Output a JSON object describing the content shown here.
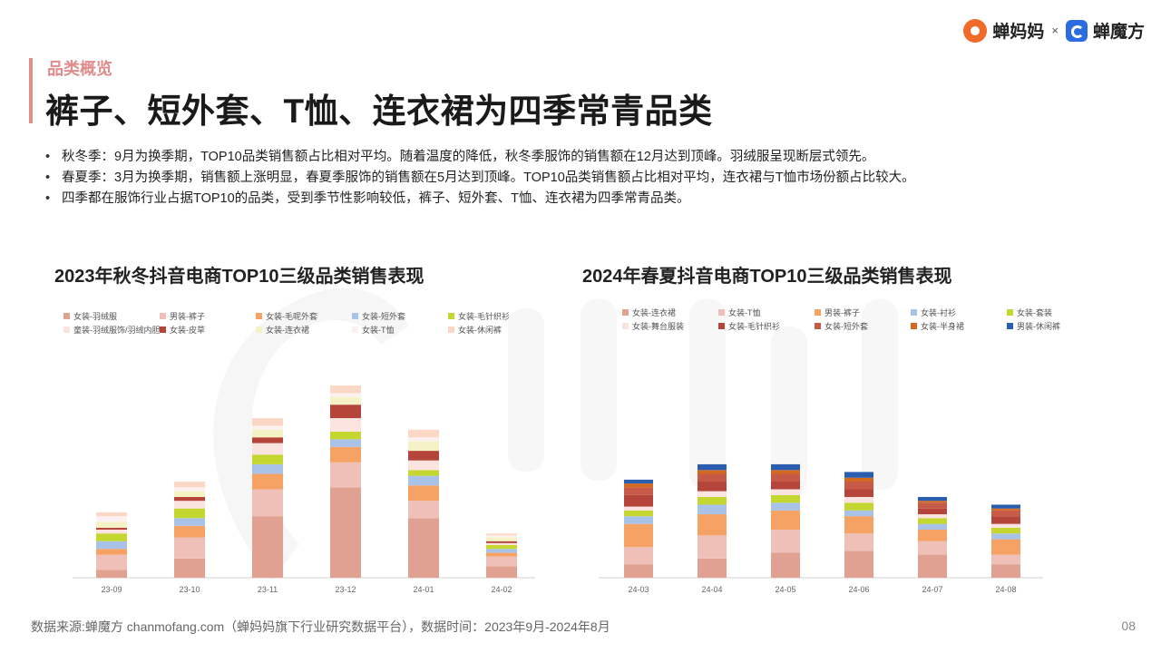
{
  "header": {
    "section_tag": "品类概览",
    "title": "裤子、短外套、T恤、连衣裙为四季常青品类",
    "brand_left": "蝉妈妈",
    "brand_sep": "×",
    "brand_right": "蝉魔方"
  },
  "bullets": [
    "秋冬季：9月为换季期，TOP10品类销售额占比相对平均。随着温度的降低，秋冬季服饰的销售额在12月达到顶峰。羽绒服呈现断层式领先。",
    "春夏季：3月为换季期，销售额上涨明显，春夏季服饰的销售额在5月达到顶峰。TOP10品类销售额占比相对平均，连衣裙与T恤市场份额占比较大。",
    "四季都在服饰行业占据TOP10的品类，受到季节性影响较低，裤子、短外套、T恤、连衣裙为四季常青品类。"
  ],
  "chart_data": [
    {
      "type": "bar",
      "stacked": true,
      "title": "2023年秋冬抖音电商TOP10三级品类销售表现",
      "categories": [
        "23-09",
        "23-10",
        "23-11",
        "23-12",
        "24-01",
        "24-02"
      ],
      "ylim": [
        0,
        100
      ],
      "grid": false,
      "legend_position": "top",
      "series": [
        {
          "name": "女装-羽绒服",
          "color": "#e0a193",
          "values": [
            4,
            10,
            32,
            47,
            31,
            6
          ]
        },
        {
          "name": "男装-裤子",
          "color": "#efc0b8",
          "values": [
            8,
            11,
            14,
            13,
            9,
            5
          ]
        },
        {
          "name": "女装-毛呢外套",
          "color": "#f6a265",
          "values": [
            3,
            6,
            8,
            8,
            8,
            2
          ]
        },
        {
          "name": "女装-短外套",
          "color": "#a9c2e8",
          "values": [
            4,
            4,
            5,
            4,
            5,
            2
          ]
        },
        {
          "name": "女装-毛针织衫",
          "color": "#c4d630",
          "values": [
            4,
            5,
            5,
            4,
            3,
            2
          ]
        },
        {
          "name": "童装-羽绒服饰/羽绒内胆",
          "color": "#fbe3df",
          "values": [
            2,
            4,
            6,
            7,
            5,
            1
          ]
        },
        {
          "name": "女装-皮草",
          "color": "#b5443a",
          "values": [
            1,
            2,
            3,
            7,
            5,
            1
          ]
        },
        {
          "name": "女装-连衣裙",
          "color": "#f5f3c6",
          "values": [
            3,
            3,
            4,
            4,
            5,
            2
          ]
        },
        {
          "name": "女装-T恤",
          "color": "#fbf1f0",
          "values": [
            3,
            2,
            2,
            2,
            2,
            1
          ]
        },
        {
          "name": "女装-休闲裤",
          "color": "#fbd8c5",
          "values": [
            2,
            3,
            4,
            4,
            4,
            1
          ]
        }
      ]
    },
    {
      "type": "bar",
      "stacked": true,
      "title": "2024年春夏抖音电商TOP10三级品类销售表现",
      "categories": [
        "24-03",
        "24-04",
        "24-05",
        "24-06",
        "24-07",
        "24-08"
      ],
      "ylim": [
        0,
        100
      ],
      "grid": false,
      "legend_position": "top",
      "series": [
        {
          "name": "女装-连衣裙",
          "color": "#e0a193",
          "values": [
            7,
            10,
            13,
            14,
            12,
            7
          ]
        },
        {
          "name": "女装-T恤",
          "color": "#efc0b8",
          "values": [
            9,
            12,
            12,
            9,
            7,
            5
          ]
        },
        {
          "name": "男装-裤子",
          "color": "#f6a265",
          "values": [
            12,
            11,
            10,
            9,
            6,
            8
          ]
        },
        {
          "name": "女装-衬衫",
          "color": "#a9c2e8",
          "values": [
            4,
            5,
            4,
            3,
            3,
            3
          ]
        },
        {
          "name": "女装-套装",
          "color": "#c4d630",
          "values": [
            3,
            4,
            4,
            4,
            3,
            3
          ]
        },
        {
          "name": "女装-舞台服装",
          "color": "#fbe3df",
          "values": [
            2,
            3,
            3,
            3,
            2,
            2
          ]
        },
        {
          "name": "女装-毛针织衫",
          "color": "#b5443a",
          "values": [
            6,
            5,
            4,
            4,
            3,
            4
          ]
        },
        {
          "name": "女装-短外套",
          "color": "#c65a46",
          "values": [
            4,
            4,
            4,
            4,
            3,
            3
          ]
        },
        {
          "name": "女装-半身裙",
          "color": "#d2691e",
          "values": [
            2,
            2,
            2,
            2,
            1,
            1
          ]
        },
        {
          "name": "男装-休闲裤",
          "color": "#2a5db0",
          "values": [
            2,
            3,
            3,
            3,
            2,
            2
          ]
        }
      ]
    }
  ],
  "footer": {
    "source": "数据来源:蝉魔方 chanmofang.com（蝉妈妈旗下行业研究数据平台），数据时间：2023年9月-2024年8月",
    "page_number": "08"
  }
}
